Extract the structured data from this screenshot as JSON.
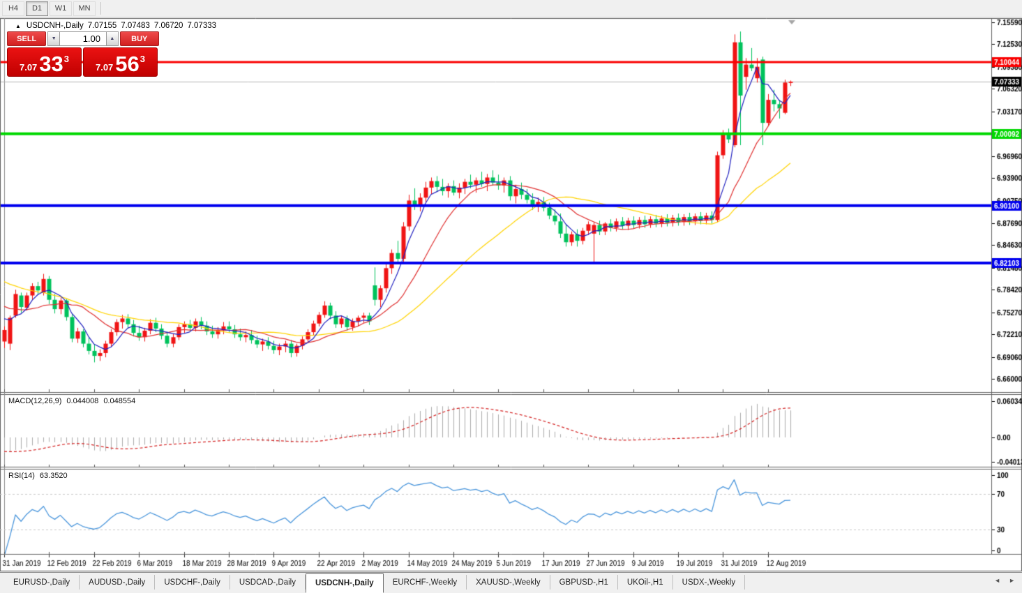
{
  "toolbar": {
    "buttons": [
      {
        "label": "H4",
        "active": false
      },
      {
        "label": "D1",
        "active": true
      },
      {
        "label": "W1",
        "active": false
      },
      {
        "label": "MN",
        "active": false
      }
    ]
  },
  "title": {
    "collapse_icon": "▲",
    "symbol": "USDCNH-,Daily",
    "open": "7.07155",
    "high": "7.07483",
    "low": "7.06720",
    "close": "7.07333"
  },
  "trade_panel": {
    "sell_label": "SELL",
    "buy_label": "BUY",
    "volume": "1.00",
    "down_icon": "▼",
    "up_icon": "▲",
    "sell_price": {
      "prefix": "7.07",
      "big": "33",
      "sup": "3"
    },
    "buy_price": {
      "prefix": "7.07",
      "big": "56",
      "sup": "3"
    }
  },
  "tabs": {
    "prev_icon": "◄",
    "next_icon": "►",
    "items": [
      {
        "label": "EURUSD-,Daily",
        "active": false
      },
      {
        "label": "AUDUSD-,Daily",
        "active": false
      },
      {
        "label": "USDCHF-,Daily",
        "active": false
      },
      {
        "label": "USDCAD-,Daily",
        "active": false
      },
      {
        "label": "USDCNH-,Daily",
        "active": true
      },
      {
        "label": "EURCHF-,Weekly",
        "active": false
      },
      {
        "label": "XAUUSD-,Weekly",
        "active": false
      },
      {
        "label": "GBPUSD-,H1",
        "active": false
      },
      {
        "label": "UKOil-,H1",
        "active": false
      },
      {
        "label": "USDX-,Weekly",
        "active": false
      }
    ]
  },
  "chart_data": {
    "type": "candlestick",
    "symbol": "USDCNH-",
    "timeframe": "Daily",
    "ohlc_current": {
      "open": 7.07155,
      "high": 7.07483,
      "low": 7.0672,
      "close": 7.07333
    },
    "y_axis_ticks": [
      "7.15590",
      "7.12530",
      "7.09380",
      "7.06320",
      "7.03170",
      "7.00110",
      "6.96960",
      "6.93900",
      "6.90750",
      "6.87690",
      "6.84630",
      "6.81480",
      "6.78420",
      "6.75270",
      "6.72210",
      "6.69060",
      "6.66000"
    ],
    "x_labels": [
      "31 Jan 2019",
      "12 Feb 2019",
      "22 Feb 2019",
      "6 Mar 2019",
      "18 Mar 2019",
      "28 Mar 2019",
      "9 Apr 2019",
      "22 Apr 2019",
      "2 May 2019",
      "14 May 2019",
      "24 May 2019",
      "5 Jun 2019",
      "17 Jun 2019",
      "27 Jun 2019",
      "9 Jul 2019",
      "19 Jul 2019",
      "31 Jul 2019",
      "12 Aug 2019"
    ],
    "x_label_step": 8,
    "horizontal_lines": [
      {
        "price": 7.10044,
        "label": "7.10044",
        "color": "#fa0000",
        "width": 3
      },
      {
        "price": 7.00092,
        "label": "7.00092",
        "color": "#00d800",
        "width": 4
      },
      {
        "price": 6.901,
        "label": "6.90100",
        "color": "#0000ee",
        "width": 4
      },
      {
        "price": 6.82103,
        "label": "6.82103",
        "color": "#0000ee",
        "width": 4
      }
    ],
    "current_price": {
      "value": 7.07333,
      "label": "7.07333",
      "line_color": "#b4b4b4",
      "badge_bg": "#000000"
    },
    "candle_colors": {
      "bull": "#f01414",
      "bear": "#00c25c"
    },
    "moving_averages": [
      {
        "period": 30,
        "color": "#ffd400"
      },
      {
        "period": 13,
        "color": "#e03030"
      },
      {
        "period": 5,
        "color": "#2020c0"
      }
    ],
    "seed_history": [
      6.876,
      6.872,
      6.869,
      6.866,
      6.861,
      6.858,
      6.853,
      6.85,
      6.846,
      6.841,
      6.838,
      6.833,
      6.83,
      6.826,
      6.821,
      6.818,
      6.813,
      6.81,
      6.806,
      6.801,
      6.798,
      6.793,
      6.79,
      6.786,
      6.781,
      6.778,
      6.773,
      6.77,
      6.766,
      6.761,
      6.758,
      6.753,
      6.75,
      6.746,
      6.741
    ],
    "candles": [
      [
        6.712,
        6.733,
        6.703,
        6.728
      ],
      [
        6.709,
        6.748,
        6.7,
        6.745
      ],
      [
        6.748,
        6.784,
        6.745,
        6.778
      ],
      [
        6.776,
        6.78,
        6.752,
        6.76
      ],
      [
        6.759,
        6.78,
        6.755,
        6.776
      ],
      [
        6.776,
        6.793,
        6.77,
        6.789
      ],
      [
        6.789,
        6.795,
        6.777,
        6.783
      ],
      [
        6.78,
        6.806,
        6.776,
        6.799
      ],
      [
        6.799,
        6.803,
        6.764,
        6.77
      ],
      [
        6.77,
        6.778,
        6.751,
        6.757
      ],
      [
        6.757,
        6.773,
        6.75,
        6.769
      ],
      [
        6.769,
        6.771,
        6.741,
        6.746
      ],
      [
        6.746,
        6.75,
        6.711,
        6.716
      ],
      [
        6.716,
        6.731,
        6.71,
        6.726
      ],
      [
        6.726,
        6.729,
        6.704,
        6.709
      ],
      [
        6.709,
        6.718,
        6.694,
        6.699
      ],
      [
        6.699,
        6.708,
        6.683,
        6.692
      ],
      [
        6.692,
        6.701,
        6.685,
        6.696
      ],
      [
        6.696,
        6.713,
        6.69,
        6.709
      ],
      [
        6.709,
        6.729,
        6.705,
        6.725
      ],
      [
        6.725,
        6.743,
        6.72,
        6.739
      ],
      [
        6.739,
        6.749,
        6.73,
        6.744
      ],
      [
        6.744,
        6.75,
        6.731,
        6.736
      ],
      [
        6.736,
        6.742,
        6.719,
        6.724
      ],
      [
        6.724,
        6.734,
        6.713,
        6.718
      ],
      [
        6.718,
        6.731,
        6.712,
        6.727
      ],
      [
        6.727,
        6.743,
        6.722,
        6.738
      ],
      [
        6.738,
        6.745,
        6.725,
        6.73
      ],
      [
        6.73,
        6.736,
        6.715,
        6.72
      ],
      [
        6.72,
        6.726,
        6.704,
        6.709
      ],
      [
        6.709,
        6.723,
        6.704,
        6.718
      ],
      [
        6.718,
        6.736,
        6.714,
        6.732
      ],
      [
        6.732,
        6.74,
        6.724,
        6.736
      ],
      [
        6.736,
        6.742,
        6.726,
        6.731
      ],
      [
        6.731,
        6.744,
        6.726,
        6.74
      ],
      [
        6.74,
        6.746,
        6.729,
        6.734
      ],
      [
        6.734,
        6.74,
        6.721,
        6.726
      ],
      [
        6.726,
        6.734,
        6.717,
        6.722
      ],
      [
        6.722,
        6.732,
        6.716,
        6.728
      ],
      [
        6.728,
        6.739,
        6.722,
        6.733
      ],
      [
        6.733,
        6.74,
        6.724,
        6.729
      ],
      [
        6.729,
        6.735,
        6.717,
        6.722
      ],
      [
        6.722,
        6.73,
        6.713,
        6.718
      ],
      [
        6.718,
        6.726,
        6.711,
        6.721
      ],
      [
        6.721,
        6.728,
        6.709,
        6.714
      ],
      [
        6.714,
        6.72,
        6.703,
        6.708
      ],
      [
        6.708,
        6.716,
        6.699,
        6.712
      ],
      [
        6.712,
        6.718,
        6.701,
        6.706
      ],
      [
        6.706,
        6.713,
        6.695,
        6.7
      ],
      [
        6.7,
        6.709,
        6.693,
        6.705
      ],
      [
        6.705,
        6.713,
        6.697,
        6.709
      ],
      [
        6.709,
        6.714,
        6.69,
        6.696
      ],
      [
        6.696,
        6.709,
        6.691,
        6.706
      ],
      [
        6.706,
        6.719,
        6.701,
        6.715
      ],
      [
        6.715,
        6.729,
        6.711,
        6.725
      ],
      [
        6.725,
        6.741,
        6.721,
        6.737
      ],
      [
        6.737,
        6.753,
        6.733,
        6.749
      ],
      [
        6.749,
        6.768,
        6.745,
        6.762
      ],
      [
        6.762,
        6.766,
        6.743,
        6.748
      ],
      [
        6.748,
        6.754,
        6.731,
        6.736
      ],
      [
        6.736,
        6.748,
        6.731,
        6.744
      ],
      [
        6.744,
        6.748,
        6.727,
        6.732
      ],
      [
        6.732,
        6.744,
        6.727,
        6.74
      ],
      [
        6.74,
        6.748,
        6.733,
        6.745
      ],
      [
        6.745,
        6.752,
        6.738,
        6.748
      ],
      [
        6.748,
        6.752,
        6.735,
        6.74
      ],
      [
        6.79,
        6.815,
        6.762,
        6.77
      ],
      [
        6.77,
        6.79,
        6.76,
        6.786
      ],
      [
        6.786,
        6.82,
        6.78,
        6.814
      ],
      [
        6.814,
        6.84,
        6.806,
        6.835
      ],
      [
        6.835,
        6.852,
        6.821,
        6.827
      ],
      [
        6.827,
        6.878,
        6.823,
        6.872
      ],
      [
        6.872,
        6.916,
        6.866,
        6.908
      ],
      [
        6.908,
        6.925,
        6.895,
        6.901
      ],
      [
        6.901,
        6.918,
        6.893,
        6.912
      ],
      [
        6.912,
        6.934,
        6.906,
        6.926
      ],
      [
        6.926,
        6.94,
        6.917,
        6.935
      ],
      [
        6.935,
        6.942,
        6.921,
        6.927
      ],
      [
        6.927,
        6.938,
        6.915,
        6.921
      ],
      [
        6.921,
        6.932,
        6.912,
        6.928
      ],
      [
        6.928,
        6.936,
        6.915,
        6.919
      ],
      [
        6.919,
        6.932,
        6.911,
        6.926
      ],
      [
        6.926,
        6.938,
        6.917,
        6.934
      ],
      [
        6.934,
        6.944,
        6.925,
        6.93
      ],
      [
        6.93,
        6.94,
        6.919,
        6.936
      ],
      [
        6.936,
        6.948,
        6.927,
        6.931
      ],
      [
        6.931,
        6.945,
        6.921,
        6.94
      ],
      [
        6.94,
        6.95,
        6.929,
        6.933
      ],
      [
        6.933,
        6.944,
        6.923,
        6.929
      ],
      [
        6.929,
        6.94,
        6.919,
        6.936
      ],
      [
        6.936,
        6.942,
        6.908,
        6.914
      ],
      [
        6.914,
        6.93,
        6.904,
        6.924
      ],
      [
        6.924,
        6.933,
        6.91,
        6.916
      ],
      [
        6.916,
        6.924,
        6.904,
        6.909
      ],
      [
        6.909,
        6.918,
        6.895,
        6.9
      ],
      [
        6.9,
        6.912,
        6.892,
        6.906
      ],
      [
        6.906,
        6.913,
        6.893,
        6.898
      ],
      [
        6.898,
        6.905,
        6.882,
        6.887
      ],
      [
        6.887,
        6.896,
        6.874,
        6.879
      ],
      [
        6.879,
        6.89,
        6.856,
        6.862
      ],
      [
        6.862,
        6.875,
        6.844,
        6.85
      ],
      [
        6.85,
        6.865,
        6.845,
        6.861
      ],
      [
        6.861,
        6.868,
        6.844,
        6.852
      ],
      [
        6.852,
        6.87,
        6.847,
        6.866
      ],
      [
        6.866,
        6.879,
        6.86,
        6.875
      ],
      [
        6.862,
        6.878,
        6.823,
        6.874
      ],
      [
        6.874,
        6.88,
        6.86,
        6.865
      ],
      [
        6.865,
        6.878,
        6.86,
        6.876
      ],
      [
        6.876,
        6.882,
        6.865,
        6.87
      ],
      [
        6.87,
        6.883,
        6.865,
        6.879
      ],
      [
        6.879,
        6.885,
        6.868,
        6.873
      ],
      [
        6.873,
        6.884,
        6.867,
        6.88
      ],
      [
        6.88,
        6.886,
        6.869,
        6.874
      ],
      [
        6.874,
        6.885,
        6.869,
        6.881
      ],
      [
        6.881,
        6.887,
        6.87,
        6.875
      ],
      [
        6.875,
        6.886,
        6.87,
        6.882
      ],
      [
        6.882,
        6.888,
        6.871,
        6.876
      ],
      [
        6.876,
        6.887,
        6.871,
        6.883
      ],
      [
        6.883,
        6.889,
        6.872,
        6.877
      ],
      [
        6.877,
        6.888,
        6.872,
        6.884
      ],
      [
        6.884,
        6.89,
        6.873,
        6.878
      ],
      [
        6.878,
        6.889,
        6.873,
        6.885
      ],
      [
        6.885,
        6.891,
        6.874,
        6.879
      ],
      [
        6.879,
        6.89,
        6.874,
        6.886
      ],
      [
        6.886,
        6.892,
        6.875,
        6.88
      ],
      [
        6.88,
        6.891,
        6.875,
        6.887
      ],
      [
        6.887,
        6.893,
        6.876,
        6.881
      ],
      [
        6.881,
        6.976,
        6.878,
        6.971
      ],
      [
        6.971,
        7.006,
        6.966,
        7.0
      ],
      [
        7.0,
        7.008,
        6.988,
        6.993
      ],
      [
        6.985,
        7.139,
        6.982,
        7.128
      ],
      [
        7.128,
        7.143,
        6.985,
        7.054
      ],
      [
        7.08,
        7.106,
        7.062,
        7.097
      ],
      [
        7.097,
        7.12,
        7.088,
        7.092
      ],
      [
        7.078,
        7.106,
        7.072,
        7.094
      ],
      [
        7.104,
        7.108,
        6.985,
        7.016
      ],
      [
        7.016,
        7.056,
        7.012,
        7.048
      ],
      [
        7.048,
        7.062,
        7.032,
        7.042
      ],
      [
        7.042,
        7.048,
        7.022,
        7.036
      ],
      [
        7.03,
        7.076,
        7.028,
        7.072
      ],
      [
        7.07155,
        7.07483,
        7.0672,
        7.07333
      ]
    ],
    "macd": {
      "label": "MACD(12,26,9)",
      "value_main": "0.044008",
      "value_signal": "0.048554",
      "fast": 12,
      "slow": 26,
      "signal": 9,
      "axis_ticks": [
        {
          "label": "0.060343",
          "v": 0.060343
        },
        {
          "label": "0.00",
          "v": 0
        },
        {
          "label": "-0.040136",
          "v": -0.040136
        }
      ],
      "bar_color": "#ababab",
      "signal_color": "#d42020"
    },
    "rsi": {
      "label": "RSI(14)",
      "value": "63.3520",
      "period": 14,
      "axis_ticks": [
        100,
        70,
        30,
        0
      ],
      "levels": [
        70,
        30
      ],
      "line_color": "#4a96dc"
    }
  }
}
